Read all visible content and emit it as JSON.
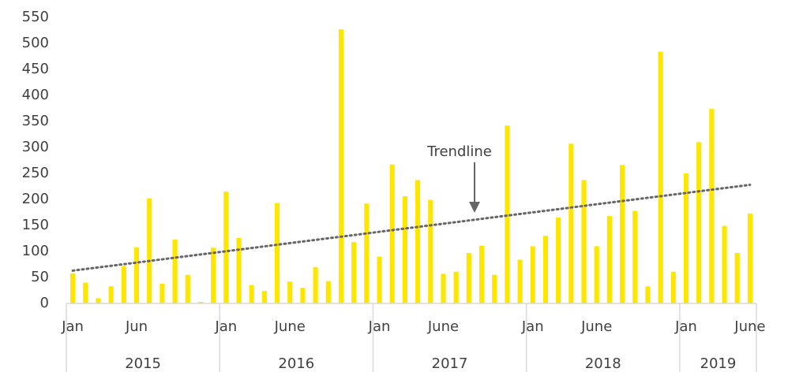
{
  "chart_data": {
    "type": "bar",
    "categories": [
      "Jan",
      null,
      null,
      null,
      null,
      "Jun",
      null,
      null,
      null,
      null,
      null,
      null,
      "Jan",
      null,
      null,
      null,
      null,
      "June",
      null,
      null,
      null,
      null,
      null,
      null,
      "Jan",
      null,
      null,
      null,
      null,
      "June",
      null,
      null,
      null,
      null,
      null,
      null,
      "Jan",
      null,
      null,
      null,
      null,
      "June",
      null,
      null,
      null,
      null,
      null,
      null,
      "Jan",
      null,
      null,
      null,
      null,
      "June"
    ],
    "years": [
      "2015",
      "2016",
      "2017",
      "2018",
      "2019"
    ],
    "values": [
      58,
      40,
      10,
      33,
      72,
      108,
      202,
      38,
      123,
      55,
      3,
      107,
      215,
      126,
      35,
      24,
      193,
      42,
      30,
      70,
      43,
      527,
      118,
      192,
      90,
      267,
      206,
      237,
      199,
      57,
      61,
      97,
      111,
      55,
      342,
      84,
      110,
      130,
      165,
      307,
      237,
      110,
      168,
      266,
      178,
      33,
      484,
      61,
      250,
      310,
      374,
      149,
      97,
      173
    ],
    "color": "#ffe600",
    "ylim": [
      0,
      550
    ],
    "yticks": [
      0,
      50,
      100,
      150,
      200,
      250,
      300,
      350,
      400,
      450,
      500,
      550
    ],
    "trendline": {
      "label": "Trendline",
      "values": [
        63,
        228
      ],
      "color": "#666666"
    }
  }
}
